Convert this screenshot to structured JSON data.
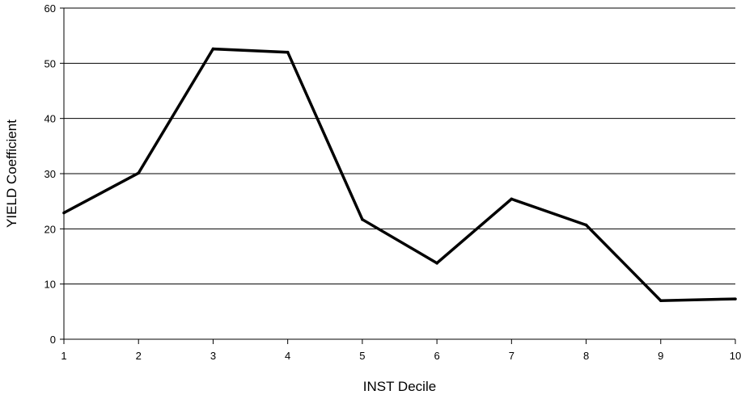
{
  "chart_data": {
    "type": "line",
    "xlabel": "INST Decile",
    "ylabel": "YIELD Coefficient",
    "x": [
      1,
      2,
      3,
      4,
      5,
      6,
      7,
      8,
      9,
      10
    ],
    "series": [
      {
        "values": [
          22.9,
          30.1,
          52.6,
          52.0,
          21.7,
          13.8,
          25.4,
          20.7,
          7.0,
          7.3
        ]
      }
    ],
    "xlim": [
      1,
      10
    ],
    "ylim": [
      0,
      60
    ],
    "yticks": [
      0,
      10,
      20,
      30,
      40,
      50,
      60
    ],
    "xticks": [
      1,
      2,
      3,
      4,
      5,
      6,
      7,
      8,
      9,
      10
    ],
    "grid": "horizontal",
    "colors": {
      "line": "#000000",
      "grid": "#000000",
      "axis": "#000000"
    }
  }
}
